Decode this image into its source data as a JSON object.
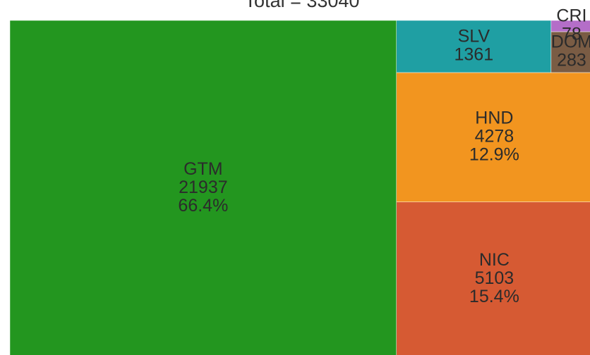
{
  "chart_data": {
    "type": "treemap",
    "title": "Total = 33040",
    "categories": [
      "GTM",
      "NIC",
      "HND",
      "SLV",
      "DOM",
      "CRI"
    ],
    "values": [
      21937,
      5103,
      4278,
      1361,
      283,
      78
    ],
    "percent_labels": [
      "66.4%",
      "15.4%",
      "12.9%",
      null,
      null,
      null
    ],
    "colors": [
      "#23961f",
      "#d65a33",
      "#f2951f",
      "#1f9fa3",
      "#7a5c44",
      "#b46ec8"
    ]
  }
}
